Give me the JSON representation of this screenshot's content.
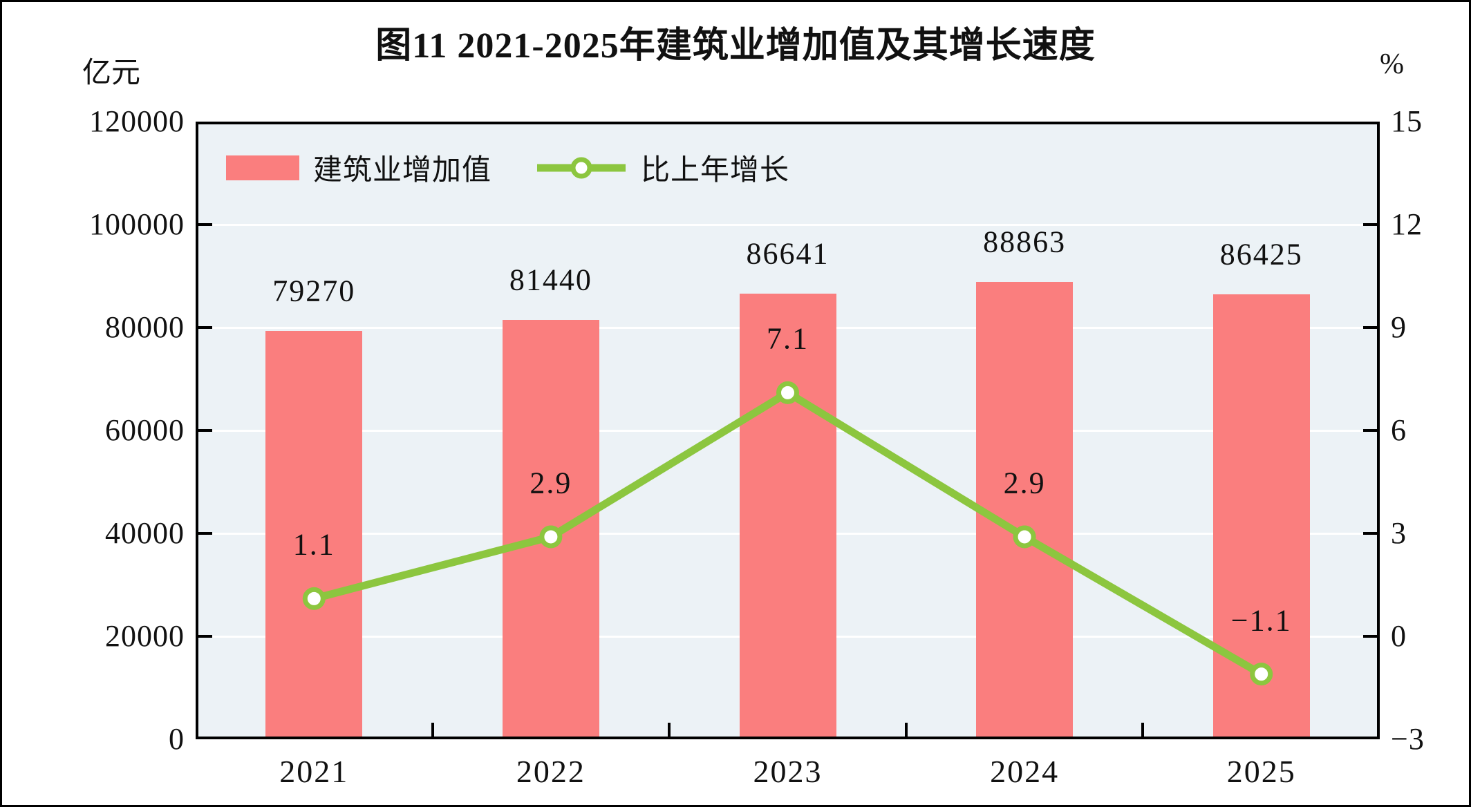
{
  "title": "图11  2021-2025年建筑业增加值及其增长速度",
  "left_axis_unit": "亿元",
  "right_axis_unit": "%",
  "colors": {
    "bar": "#FA7E7E",
    "line": "#8CC63F",
    "marker_fill": "#FFFFFF",
    "plot_bg": "#ECF2F6",
    "grid": "#FFFFFF",
    "axis": "#000000",
    "text": "#111111"
  },
  "chart_data": {
    "type": "bar",
    "subtype": "bar+line-dual-axis",
    "title": "图11  2021-2025年建筑业增加值及其增长速度",
    "categories": [
      "2021",
      "2022",
      "2023",
      "2024",
      "2025"
    ],
    "series": [
      {
        "name": "建筑业增加值",
        "type": "bar",
        "axis": "left",
        "color": "#FA7E7E",
        "values": [
          79270,
          81440,
          86641,
          88863,
          86425
        ]
      },
      {
        "name": "比上年增长",
        "type": "line",
        "axis": "right",
        "color": "#8CC63F",
        "values": [
          1.1,
          2.9,
          7.1,
          2.9,
          -1.1
        ]
      }
    ],
    "left_axis": {
      "label": "亿元",
      "min": 0,
      "max": 120000,
      "step": 20000,
      "ticks": [
        "0",
        "20000",
        "40000",
        "60000",
        "80000",
        "100000",
        "120000"
      ]
    },
    "right_axis": {
      "label": "%",
      "min": -3,
      "max": 15,
      "step": 3,
      "ticks": [
        "-3",
        "0",
        "3",
        "6",
        "9",
        "12",
        "15"
      ]
    },
    "grid": true,
    "legend_position": "top-left-inside"
  }
}
